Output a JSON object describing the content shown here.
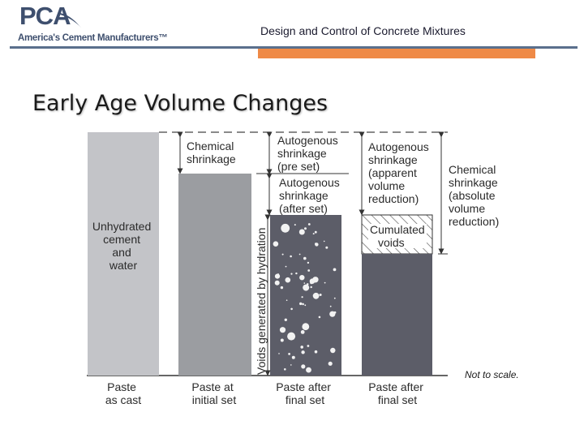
{
  "header": {
    "logo": "PCA",
    "tagline": "America's Cement Manufacturers™",
    "title": "Design and Control of Concrete Mixtures",
    "colors": {
      "brand_blue": "#3e4f6e",
      "accent_orange": "#ef8a47"
    }
  },
  "slide": {
    "title": "Early Age Volume Changes"
  },
  "diagram": {
    "columns": [
      {
        "label": [
          "Paste",
          "as cast"
        ],
        "inside_label": [
          "Unhydrated",
          "cement",
          "and",
          "water"
        ]
      },
      {
        "label": [
          "Paste at",
          "initial set"
        ]
      },
      {
        "label": [
          "Paste after",
          "final set"
        ]
      },
      {
        "label": [
          "Paste after",
          "final set"
        ]
      }
    ],
    "annotations": {
      "chemical_shrinkage": [
        "Chemical",
        "shrinkage"
      ],
      "autogenous_pre_set": [
        "Autogenous",
        "shrinkage",
        "(pre set)"
      ],
      "autogenous_after_set": [
        "Autogenous",
        "shrinkage",
        "(after set)"
      ],
      "voids_by_hydration": "Voids generated by hydration",
      "autogenous_apparent": [
        "Autogenous",
        "shrinkage",
        "(apparent",
        "volume",
        "reduction)"
      ],
      "cumulated_voids": [
        "Cumulated",
        "voids"
      ],
      "chemical_absolute": [
        "Chemical",
        "shrinkage",
        "(absolute",
        "volume",
        "reduction)"
      ]
    },
    "colors": {
      "light_gray": "#c3c4c8",
      "mid_gray": "#9b9da1",
      "dark_gray": "#5c5d68"
    }
  },
  "note": "Not to scale."
}
